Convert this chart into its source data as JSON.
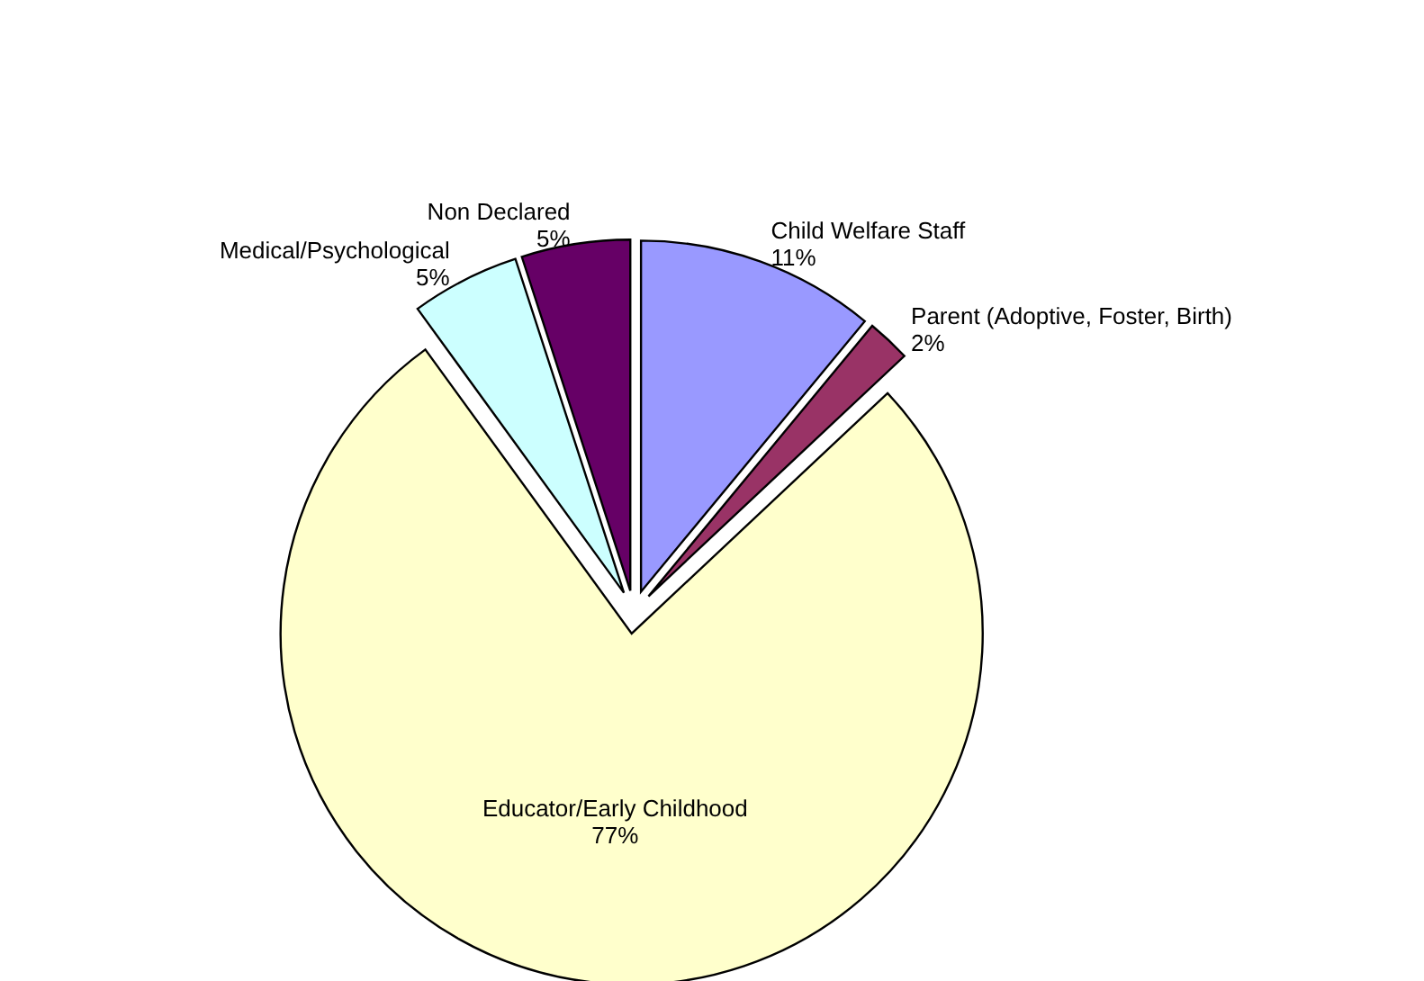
{
  "chart_data": {
    "type": "pie",
    "categories": [
      "Child Welfare Staff",
      "Parent (Adoptive, Foster, Birth)",
      "Educator/Early Childhood",
      "Medical/Psychological",
      "Non Declared"
    ],
    "values": [
      11,
      2,
      77,
      5,
      5
    ],
    "value_labels": [
      "11%",
      "2%",
      "77%",
      "5%",
      "5%"
    ],
    "colors": [
      "#9999ff",
      "#993366",
      "#ffffcc",
      "#ccffff",
      "#660066"
    ]
  }
}
